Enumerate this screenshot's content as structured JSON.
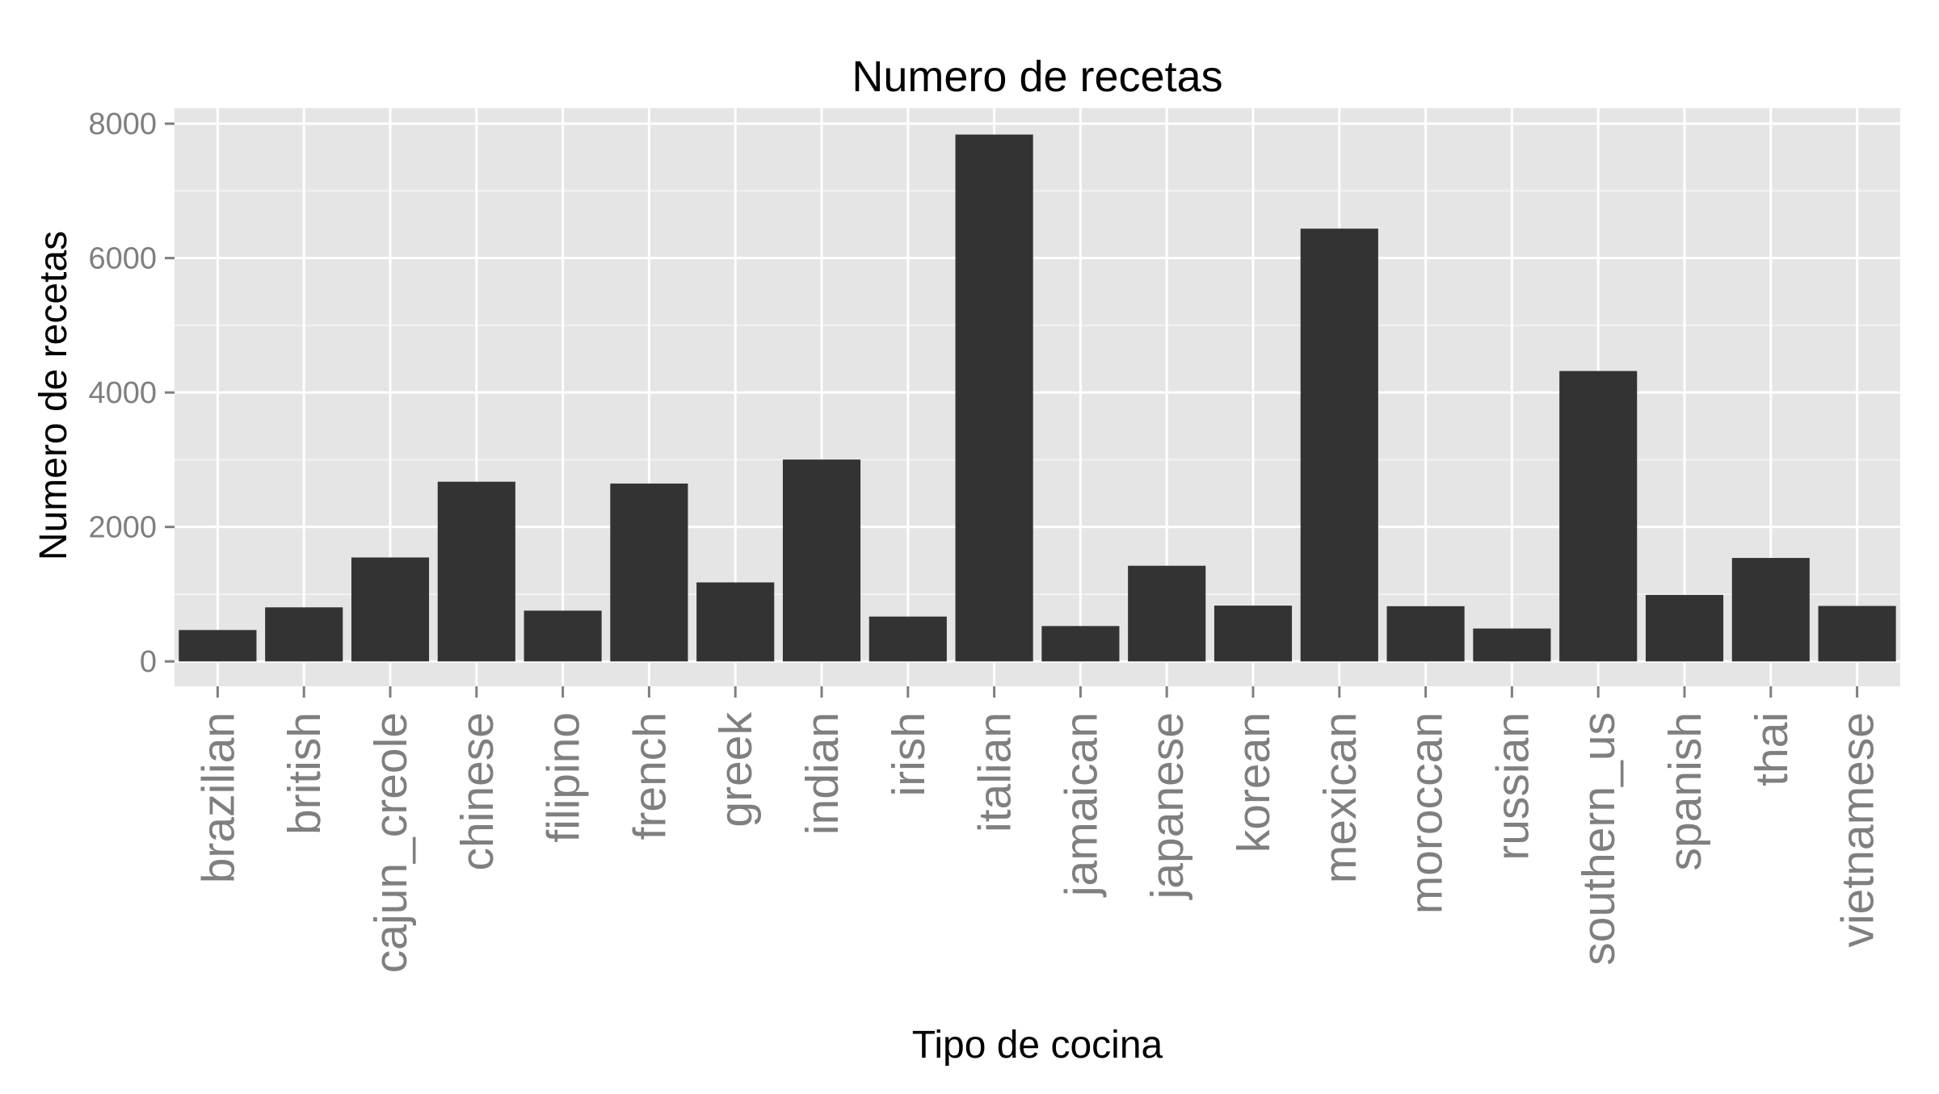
{
  "chart_data": {
    "type": "bar",
    "title": "Numero de recetas",
    "xlabel": "Tipo de cocina",
    "ylabel": "Numero de recetas",
    "categories": [
      "brazilian",
      "british",
      "cajun_creole",
      "chinese",
      "filipino",
      "french",
      "greek",
      "indian",
      "irish",
      "italian",
      "jamaican",
      "japanese",
      "korean",
      "mexican",
      "moroccan",
      "russian",
      "southern_us",
      "spanish",
      "thai",
      "vietnamese"
    ],
    "values": [
      467,
      804,
      1546,
      2673,
      755,
      2646,
      1175,
      3003,
      667,
      7838,
      526,
      1423,
      830,
      6438,
      821,
      489,
      4320,
      989,
      1539,
      825
    ],
    "yticks": [
      0,
      2000,
      4000,
      6000,
      8000
    ],
    "ylim": [
      -370,
      8230
    ],
    "grid": true,
    "legend": "none",
    "colors": {
      "bar": "#333333",
      "panel": "#e5e5e5",
      "grid_major": "#ffffff",
      "grid_minor": "#f2f2f2",
      "tick_text": "#7f7f7f",
      "title_text": "#000000"
    }
  }
}
